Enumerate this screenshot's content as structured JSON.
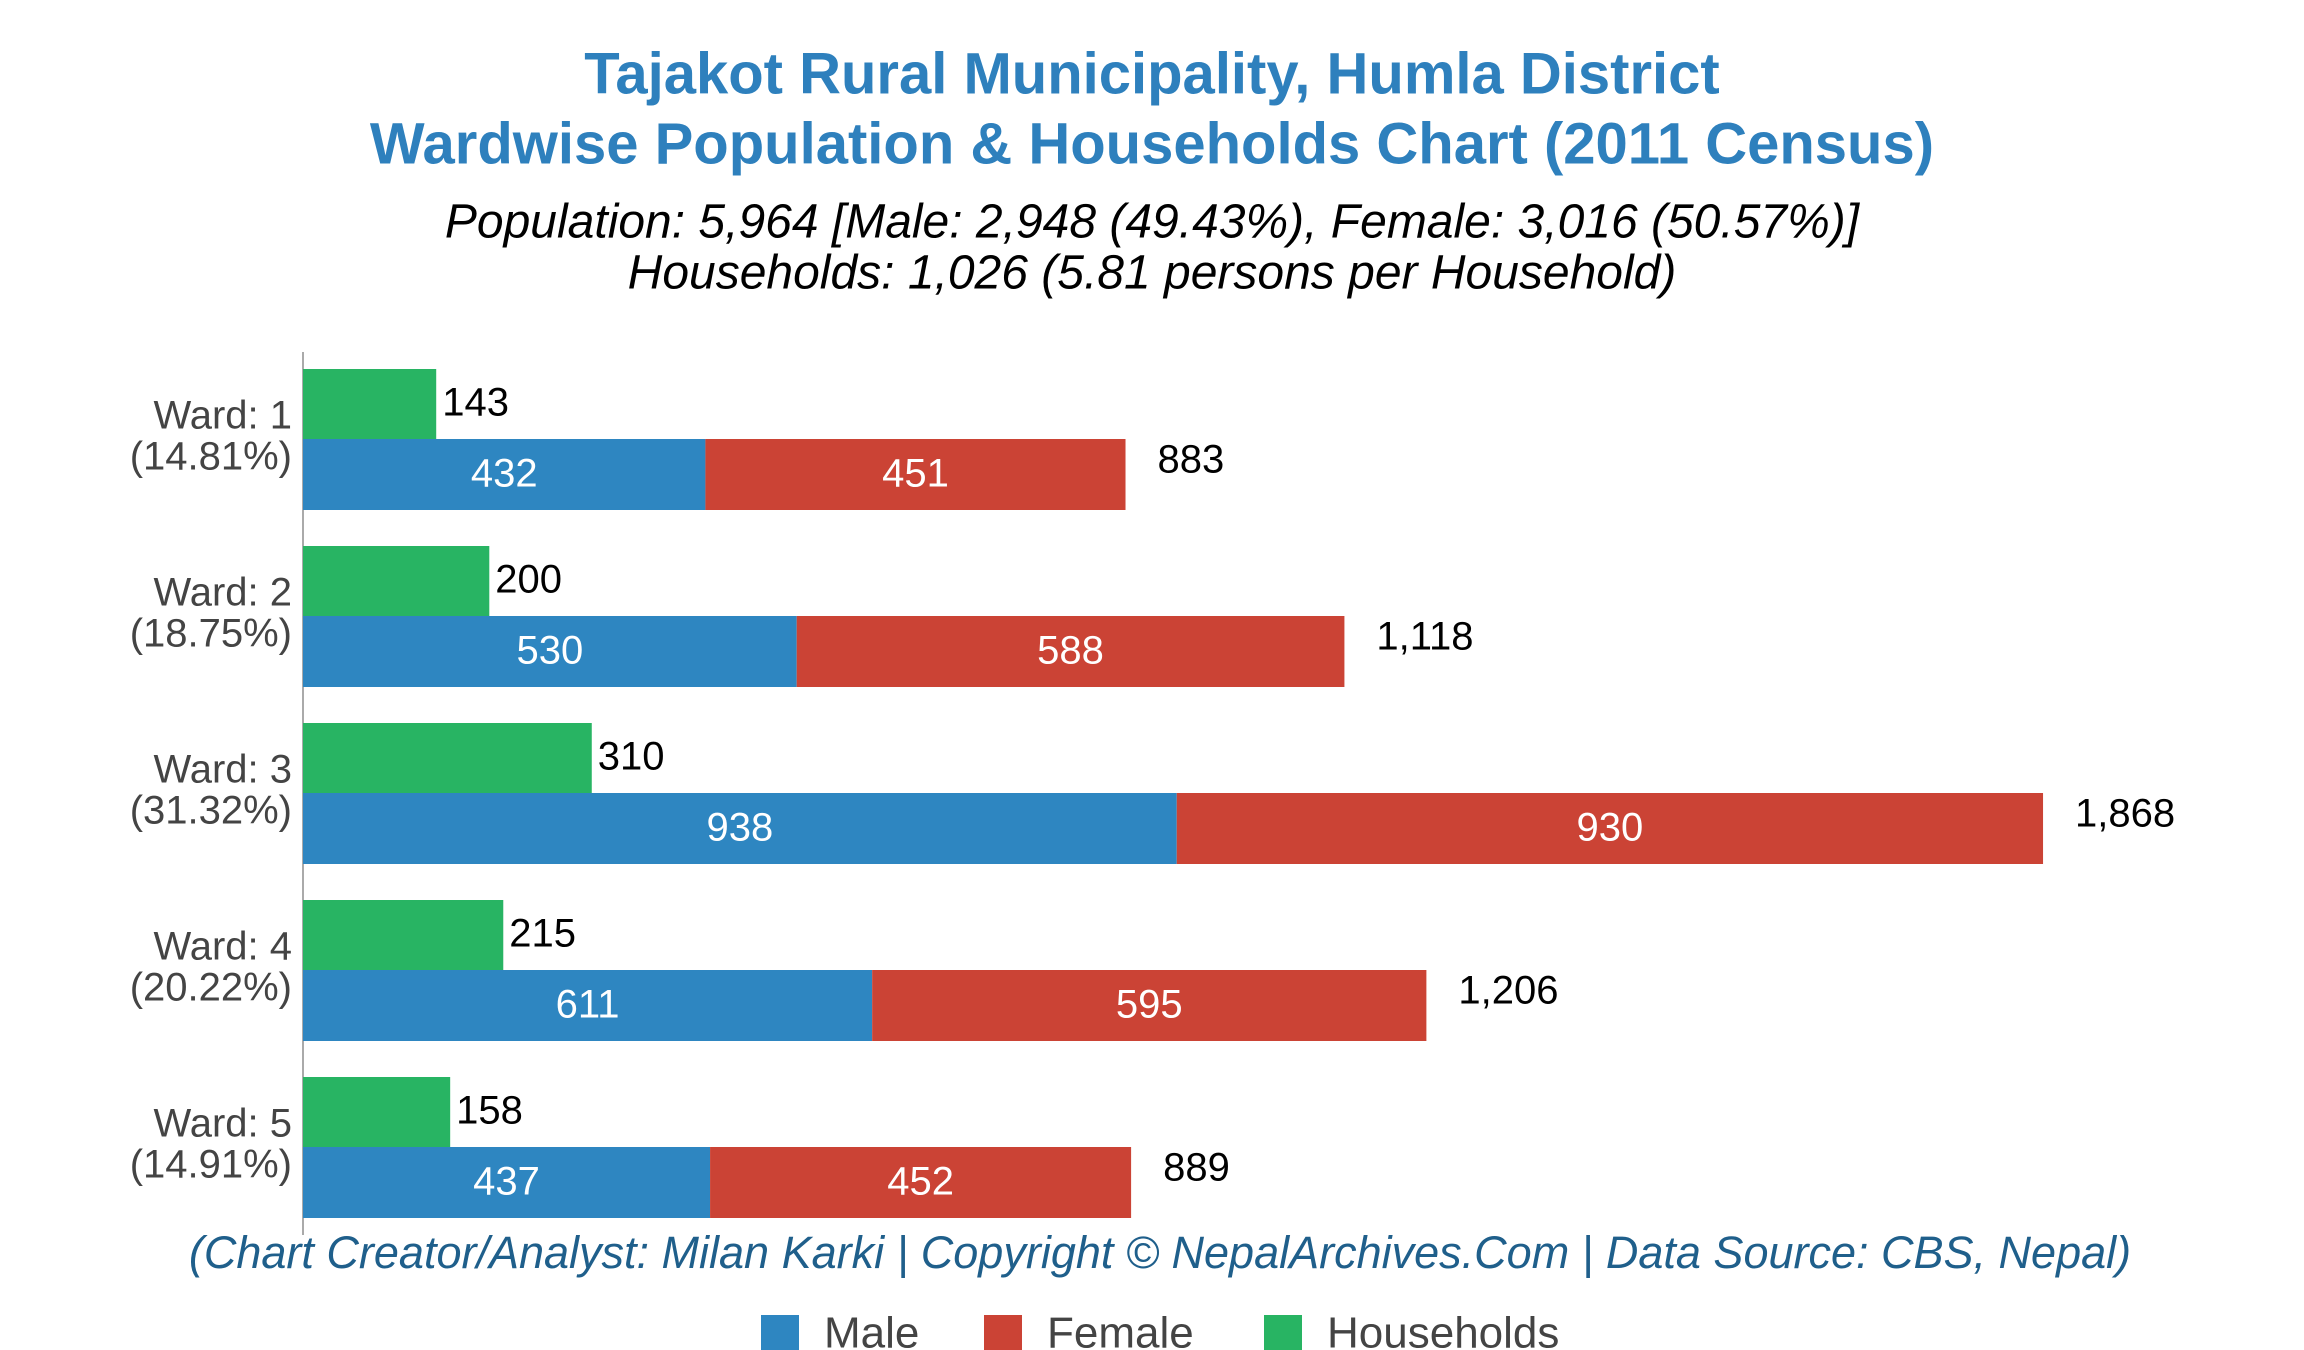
{
  "chart_data": {
    "type": "bar",
    "orientation": "horizontal",
    "title": [
      "Tajakot Rural Municipality, Humla District",
      "Wardwise Population & Households Chart (2011 Census)"
    ],
    "subtitle": [
      "Population: 5,964 [Male: 2,948 (49.43%), Female: 3,016 (50.57%)]",
      "Households: 1,026 (5.81 persons per Household)"
    ],
    "credit": "(Chart Creator/Analyst: Milan Karki | Copyright © NepalArchives.Com | Data Source: CBS, Nepal)",
    "categories": [
      [
        "Ward: 1",
        "(14.81%)"
      ],
      [
        "Ward: 2",
        "(18.75%)"
      ],
      [
        "Ward: 3",
        "(31.32%)"
      ],
      [
        "Ward: 4",
        "(20.22%)"
      ],
      [
        "Ward: 5",
        "(14.91%)"
      ]
    ],
    "series": [
      {
        "name": "Male",
        "color": "#2e86c1",
        "values": [
          432,
          530,
          938,
          611,
          437
        ]
      },
      {
        "name": "Female",
        "color": "#cb4335",
        "values": [
          451,
          588,
          930,
          595,
          452
        ]
      },
      {
        "name": "Households",
        "color": "#28b463",
        "values": [
          143,
          200,
          310,
          215,
          158
        ]
      }
    ],
    "totals": {
      "values": [
        883,
        1118,
        1868,
        1206,
        889
      ],
      "value_labels": [
        "883",
        "1,118",
        "1,868",
        "1,206",
        "889"
      ]
    },
    "xlim": [
      0,
      2000
    ],
    "legend": "bottom"
  }
}
